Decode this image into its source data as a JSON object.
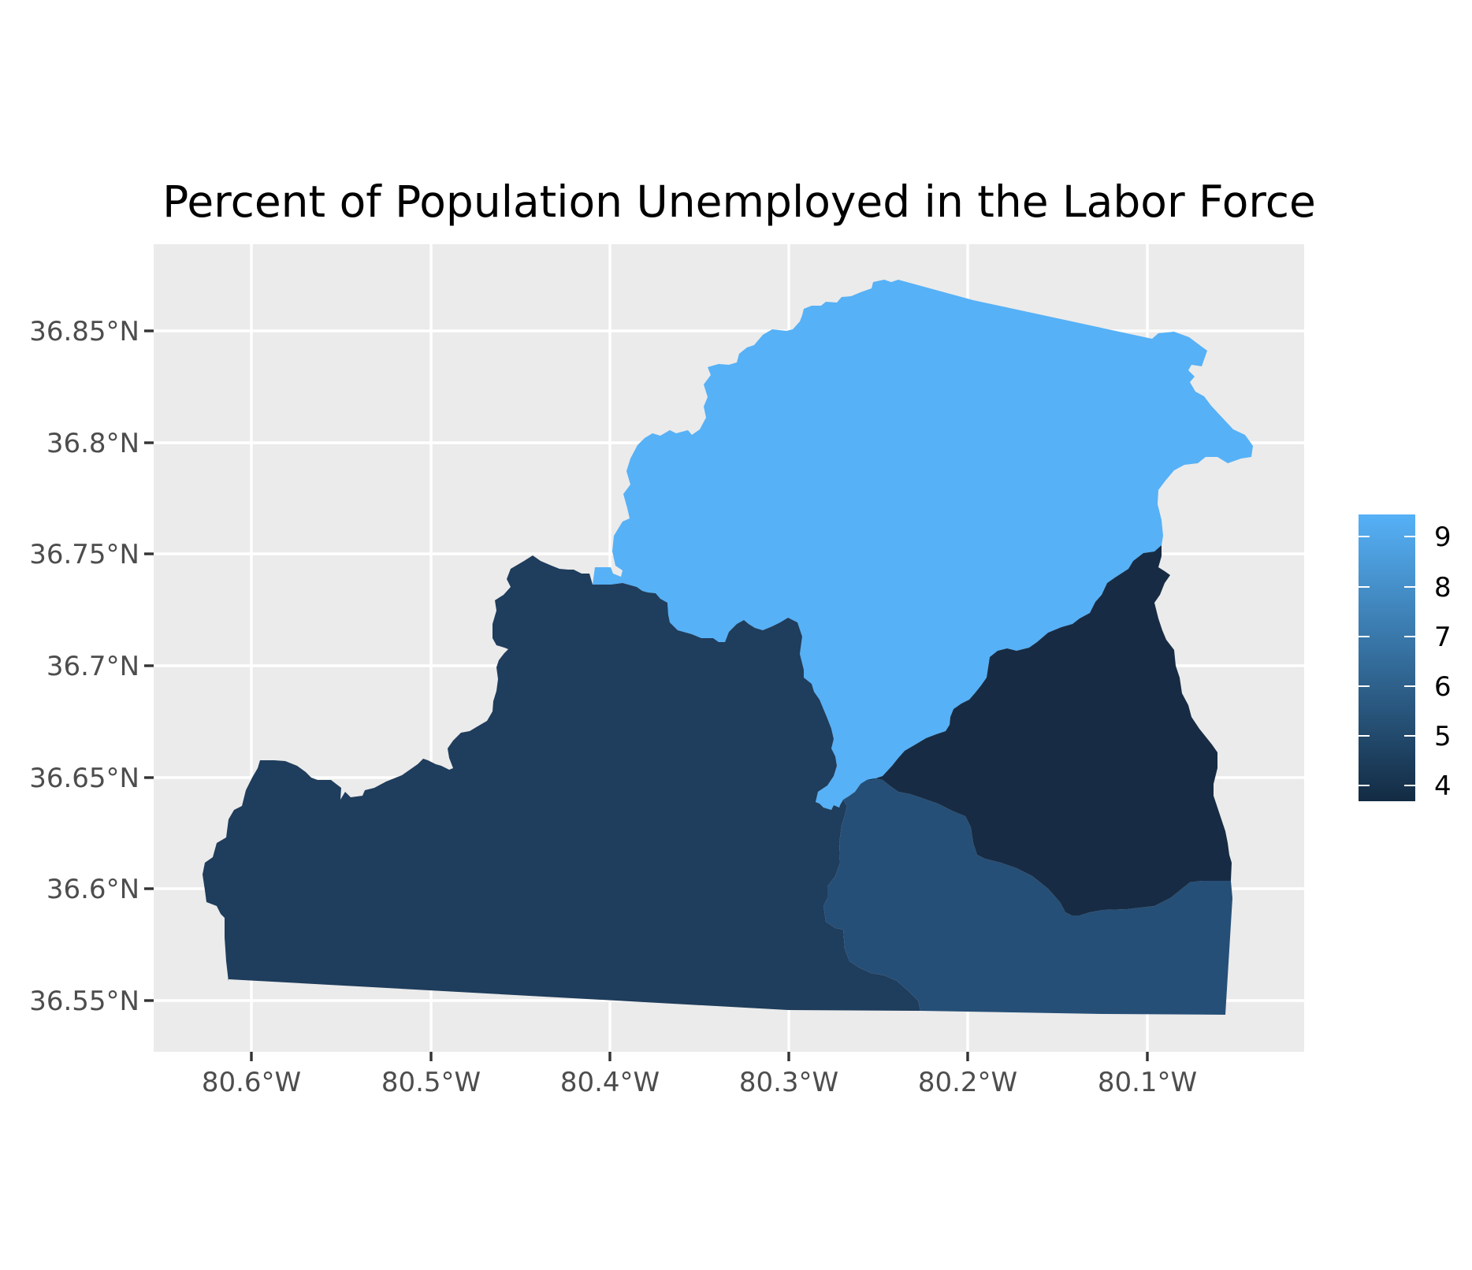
{
  "title": "Percent of Population Unemployed in the Labor Force",
  "map": {
    "x_axis": {
      "ticks": [
        "80.6°W",
        "80.5°W",
        "80.4°W",
        "80.3°W",
        "80.2°W",
        "80.1°W"
      ]
    },
    "y_axis": {
      "ticks": [
        "36.85°N",
        "36.8°N",
        "36.75°N",
        "36.7°N",
        "36.65°N",
        "36.6°N",
        "36.55°N"
      ]
    },
    "regions": [
      {
        "name": "north",
        "value": 9.2,
        "color": "#56b1f7"
      },
      {
        "name": "west",
        "value": 4.7,
        "color": "#1f3d5c"
      },
      {
        "name": "south-east",
        "value": 5.4,
        "color": "#264f77"
      },
      {
        "name": "east",
        "value": 4.2,
        "color": "#172c44"
      }
    ],
    "background_color": "#ebebeb",
    "grid": true
  },
  "legend": {
    "title": "",
    "labels": [
      "9",
      "8",
      "7",
      "6",
      "5",
      "4"
    ],
    "gradient": {
      "low_color": "#132b43",
      "high_color": "#56b1f7"
    }
  }
}
